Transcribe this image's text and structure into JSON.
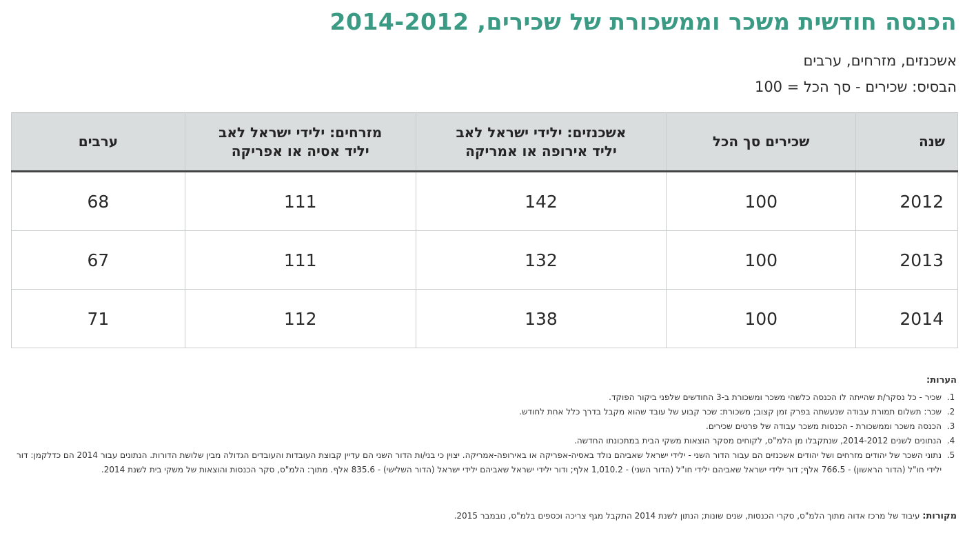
{
  "title": "הכנסה חודשית משכר וממשכורת של שכירים, 2014-2012",
  "subtitle_groups": "אשכנזים, מזרחים, ערבים",
  "subtitle_base": "הבסיס: שכירים - סך הכל = 100",
  "table": {
    "headers": {
      "year": "שנה",
      "total": "שכירים סך הכל",
      "ashkenazim_line1": "אשכנזים: ילידי ישראל לאב",
      "ashkenazim_line2": "יליד אירופה או אמריקה",
      "mizrahim_line1": "מזרחים: ילידי ישראל לאב",
      "mizrahim_line2": "יליד אסיה או אפריקה",
      "arabs": "ערבים"
    },
    "rows": [
      {
        "year": "2012",
        "total": "100",
        "ashkenazim": "142",
        "mizrahim": "111",
        "arabs": "68"
      },
      {
        "year": "2013",
        "total": "100",
        "ashkenazim": "132",
        "mizrahim": "111",
        "arabs": "67"
      },
      {
        "year": "2014",
        "total": "100",
        "ashkenazim": "138",
        "mizrahim": "112",
        "arabs": "71"
      }
    ]
  },
  "notes": {
    "title": "הערות:",
    "items": [
      "שכיר - כל נסקר/ת שהייתה לו הכנסה כלשהי משכר ומשכורת ב-3 החודשים שלפני ביקור הפוקד.",
      "שכר: תשלום תמורת עבודה שנעשתה בפרק זמן קצוב; משכורת: שכר קבוע של עובד שהוא מקבל בדרך כלל אחת לחודש.",
      "הכנסה משכר וממשכורת - הכנסות משכר עבודה של פרטים שכירים.",
      "הנתונים לשנים 2014-2012, שנתקבלו מן הלמ\"ס, לקוחים מסקר הוצאות משקי הבית במתכונתו החדשה.",
      "נתוני השכר של יהודים מזרחים ושל יהודים אשכנזים הם עבור הדור השני - ילידי ישראל שאביהם נולד באסיה-אפריקה או באירופה-אמריקה. יצוין כי בני/ות הדור השני הם עדיין קבוצת העובדות והעובדים הגדולה מבין שלושת הדורות. הנתונים עבור 2014 הם כדלקמן: דור ילידי חו\"ל (הדור הראשון) - 766.5 אלף; דור ילידי ישראל שאביהם ילידי חו\"ל (הדור השני) - 1,010.2 אלף; ודור ילידי ישראל שאביהם ילידי ישראל (הדור השלישי) - 835.6 אלף. מתוך: הלמ\"ס, סקר הכנסות והוצאות של משקי בית לשנת 2014."
    ]
  },
  "sources": {
    "label": "מקורות:",
    "text": "עיבוד של מרכז אדוה מתוך הלמ\"ס, סקרי הכנסות, שנים שונות; הנתון לשנת 2014 התקבל מגף צריכה וכספים בלמ\"ס, נובמבר 2015."
  }
}
